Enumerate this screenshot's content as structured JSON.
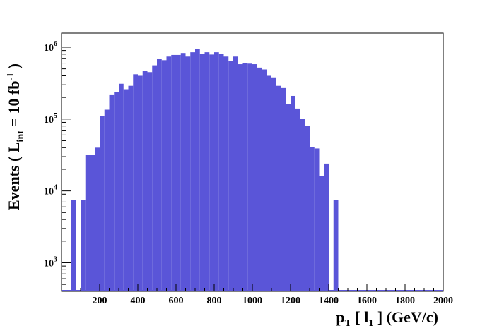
{
  "chart_data": {
    "type": "histogram",
    "x_label": [
      "p",
      "T",
      " [ l",
      "1",
      " ] (GeV/c)"
    ],
    "y_label": [
      "Events  ( L",
      "int",
      " = 10 fb",
      "-1",
      " )"
    ],
    "bins": [
      0,
      25,
      50,
      75,
      100,
      125,
      150,
      175,
      200,
      225,
      250,
      275,
      300,
      325,
      350,
      375,
      400,
      425,
      450,
      475,
      500,
      525,
      550,
      575,
      600,
      625,
      650,
      675,
      700,
      725,
      750,
      775,
      800,
      825,
      850,
      875,
      900,
      925,
      950,
      975,
      1000,
      1025,
      1050,
      1075,
      1100,
      1125,
      1150,
      1175,
      1200,
      1225,
      1250,
      1275,
      1300,
      1325,
      1350,
      1375,
      1400,
      1425,
      1450,
      1475,
      1500,
      1525,
      1550,
      1575,
      1600,
      1625,
      1650,
      1675,
      1700,
      1725,
      1750,
      1775,
      1800,
      1825,
      1850,
      1875,
      1900,
      1925,
      1950,
      1975,
      2000
    ],
    "values": [
      0,
      0,
      7500,
      0,
      7500,
      32000,
      32000,
      40000,
      110000,
      135000,
      220000,
      240000,
      310000,
      260000,
      290000,
      420000,
      400000,
      470000,
      450000,
      560000,
      680000,
      660000,
      740000,
      780000,
      780000,
      830000,
      740000,
      850000,
      950000,
      800000,
      850000,
      790000,
      850000,
      800000,
      740000,
      640000,
      740000,
      580000,
      600000,
      590000,
      580000,
      520000,
      490000,
      400000,
      380000,
      290000,
      270000,
      160000,
      210000,
      140000,
      100000,
      80000,
      41000,
      39000,
      16000,
      24000,
      0,
      7500,
      0,
      0,
      0,
      0,
      0,
      0,
      0,
      0,
      0,
      0,
      0,
      0,
      0,
      0,
      0,
      0,
      0,
      0,
      0,
      0,
      0,
      0
    ],
    "color": "#5a55d8",
    "log_y": true,
    "xlim": [
      0,
      2000
    ],
    "xticks": [
      200,
      400,
      600,
      800,
      1000,
      1200,
      1400,
      1600,
      1800,
      2000
    ],
    "ylim": [
      400,
      1570000
    ],
    "yticks": [
      {
        "value": 1000,
        "label": "10",
        "exponent": "3"
      },
      {
        "value": 10000,
        "label": "10",
        "exponent": "4"
      },
      {
        "value": 100000,
        "label": "10",
        "exponent": "5"
      },
      {
        "value": 1000000,
        "label": "10",
        "exponent": "6"
      }
    ]
  }
}
